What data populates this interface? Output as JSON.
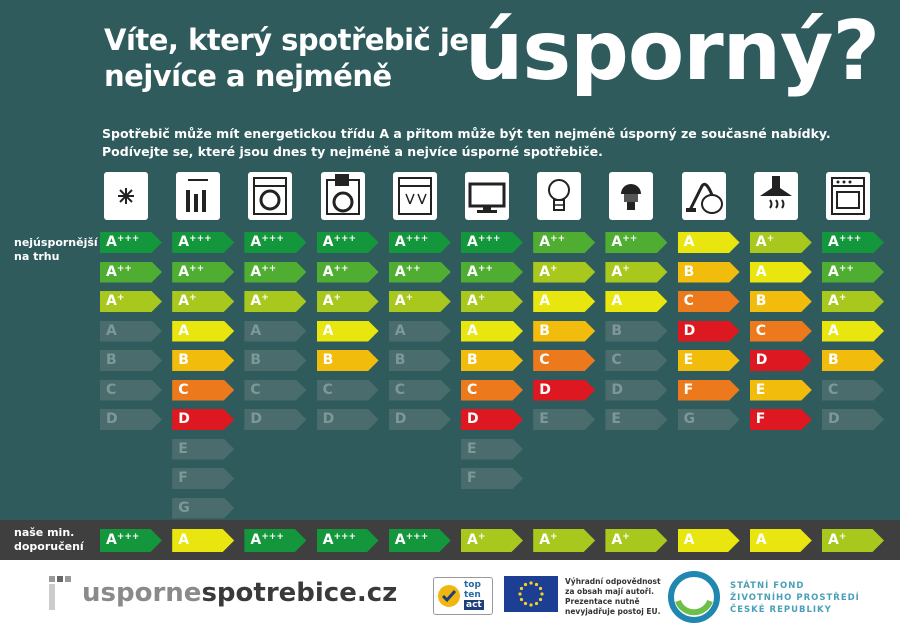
{
  "header": {
    "title_line1": "Víte, který spotřebič je",
    "title_line2": "nejvíce a nejméně",
    "title_big": "úsporný?"
  },
  "intro": {
    "line1": "Spotřebič může mít energetickou třídu A a přitom může být ten nejméně úsporný ze současné nabídky.",
    "line2": "Podívejte se, které jsou dnes ty nejméně a nejvíce úsporné spotřebiče."
  },
  "row_label": {
    "line1": "nejúspornější",
    "line2": "na trhu"
  },
  "recommendation_label": {
    "line1": "naše min.",
    "line2": "doporučení"
  },
  "colors": {
    "background": "#2f5b5c",
    "ghost": "#4b6c6d",
    "class": {
      "A+++": "#13963c",
      "A++": "#4fae32",
      "A+": "#a8c81e",
      "A": "#e9e50e",
      "B": "#f2bc0c",
      "C": "#ec7a1c",
      "D": "#dd1820",
      "E": "#4b6c6d",
      "F": "#4b6c6d",
      "G": "#4b6c6d"
    }
  },
  "appliances": [
    {
      "icon": "freezer-icon",
      "classes": [
        {
          "t": "A",
          "s": "+++",
          "c": "A+++",
          "g": false
        },
        {
          "t": "A",
          "s": "++",
          "c": "A++",
          "g": false
        },
        {
          "t": "A",
          "s": "+",
          "c": "A+",
          "g": false
        },
        {
          "t": "A",
          "s": "",
          "c": "A",
          "g": true
        },
        {
          "t": "B",
          "s": "",
          "c": "B",
          "g": true
        },
        {
          "t": "C",
          "s": "",
          "c": "C",
          "g": true
        },
        {
          "t": "D",
          "s": "",
          "c": "D",
          "g": true
        }
      ],
      "rec": {
        "t": "A",
        "s": "+++",
        "c": "A+++"
      }
    },
    {
      "icon": "wine-cooler-icon",
      "classes": [
        {
          "t": "A",
          "s": "+++",
          "c": "A+++",
          "g": false
        },
        {
          "t": "A",
          "s": "++",
          "c": "A++",
          "g": false
        },
        {
          "t": "A",
          "s": "+",
          "c": "A+",
          "g": false
        },
        {
          "t": "A",
          "s": "",
          "c": "A",
          "g": false
        },
        {
          "t": "B",
          "s": "",
          "c": "B",
          "g": false
        },
        {
          "t": "C",
          "s": "",
          "c": "C",
          "g": false
        },
        {
          "t": "D",
          "s": "",
          "c": "D",
          "g": false
        },
        {
          "t": "E",
          "s": "",
          "c": "E",
          "g": true
        },
        {
          "t": "F",
          "s": "",
          "c": "F",
          "g": true
        },
        {
          "t": "G",
          "s": "",
          "c": "G",
          "g": true
        }
      ],
      "rec": {
        "t": "A",
        "s": "",
        "c": "A"
      }
    },
    {
      "icon": "washing-machine-icon",
      "classes": [
        {
          "t": "A",
          "s": "+++",
          "c": "A+++",
          "g": false
        },
        {
          "t": "A",
          "s": "++",
          "c": "A++",
          "g": false
        },
        {
          "t": "A",
          "s": "+",
          "c": "A+",
          "g": false
        },
        {
          "t": "A",
          "s": "",
          "c": "A",
          "g": true
        },
        {
          "t": "B",
          "s": "",
          "c": "B",
          "g": true
        },
        {
          "t": "C",
          "s": "",
          "c": "C",
          "g": true
        },
        {
          "t": "D",
          "s": "",
          "c": "D",
          "g": true
        }
      ],
      "rec": {
        "t": "A",
        "s": "+++",
        "c": "A+++"
      }
    },
    {
      "icon": "washer-dryer-icon",
      "classes": [
        {
          "t": "A",
          "s": "+++",
          "c": "A+++",
          "g": false
        },
        {
          "t": "A",
          "s": "++",
          "c": "A++",
          "g": false
        },
        {
          "t": "A",
          "s": "+",
          "c": "A+",
          "g": false
        },
        {
          "t": "A",
          "s": "",
          "c": "A",
          "g": false
        },
        {
          "t": "B",
          "s": "",
          "c": "B",
          "g": false
        },
        {
          "t": "C",
          "s": "",
          "c": "C",
          "g": true
        },
        {
          "t": "D",
          "s": "",
          "c": "D",
          "g": true
        }
      ],
      "rec": {
        "t": "A",
        "s": "+++",
        "c": "A+++"
      }
    },
    {
      "icon": "dishwasher-icon",
      "classes": [
        {
          "t": "A",
          "s": "+++",
          "c": "A+++",
          "g": false
        },
        {
          "t": "A",
          "s": "++",
          "c": "A++",
          "g": false
        },
        {
          "t": "A",
          "s": "+",
          "c": "A+",
          "g": false
        },
        {
          "t": "A",
          "s": "",
          "c": "A",
          "g": true
        },
        {
          "t": "B",
          "s": "",
          "c": "B",
          "g": true
        },
        {
          "t": "C",
          "s": "",
          "c": "C",
          "g": true
        },
        {
          "t": "D",
          "s": "",
          "c": "D",
          "g": true
        }
      ],
      "rec": {
        "t": "A",
        "s": "+++",
        "c": "A+++"
      }
    },
    {
      "icon": "television-icon",
      "classes": [
        {
          "t": "A",
          "s": "+++",
          "c": "A+++",
          "g": false
        },
        {
          "t": "A",
          "s": "++",
          "c": "A++",
          "g": false
        },
        {
          "t": "A",
          "s": "+",
          "c": "A+",
          "g": false
        },
        {
          "t": "A",
          "s": "",
          "c": "A",
          "g": false
        },
        {
          "t": "B",
          "s": "",
          "c": "B",
          "g": false
        },
        {
          "t": "C",
          "s": "",
          "c": "C",
          "g": false
        },
        {
          "t": "D",
          "s": "",
          "c": "D",
          "g": false
        },
        {
          "t": "E",
          "s": "",
          "c": "E",
          "g": true
        },
        {
          "t": "F",
          "s": "",
          "c": "F",
          "g": true
        }
      ],
      "rec": {
        "t": "A",
        "s": "+",
        "c": "A+"
      }
    },
    {
      "icon": "light-bulb-icon",
      "classes": [
        {
          "t": "A",
          "s": "++",
          "c": "A++",
          "g": false
        },
        {
          "t": "A",
          "s": "+",
          "c": "A+",
          "g": false
        },
        {
          "t": "A",
          "s": "",
          "c": "A",
          "g": false
        },
        {
          "t": "B",
          "s": "",
          "c": "B",
          "g": false
        },
        {
          "t": "C",
          "s": "",
          "c": "C",
          "g": false
        },
        {
          "t": "D",
          "s": "",
          "c": "D",
          "g": false
        },
        {
          "t": "E",
          "s": "",
          "c": "E",
          "g": true
        }
      ],
      "rec": {
        "t": "A",
        "s": "+",
        "c": "A+"
      }
    },
    {
      "icon": "led-bulb-icon",
      "classes": [
        {
          "t": "A",
          "s": "++",
          "c": "A++",
          "g": false
        },
        {
          "t": "A",
          "s": "+",
          "c": "A+",
          "g": false
        },
        {
          "t": "A",
          "s": "",
          "c": "A",
          "g": false
        },
        {
          "t": "B",
          "s": "",
          "c": "B",
          "g": true
        },
        {
          "t": "C",
          "s": "",
          "c": "C",
          "g": true
        },
        {
          "t": "D",
          "s": "",
          "c": "D",
          "g": true
        },
        {
          "t": "E",
          "s": "",
          "c": "E",
          "g": true
        }
      ],
      "rec": {
        "t": "A",
        "s": "+",
        "c": "A+"
      }
    },
    {
      "icon": "vacuum-cleaner-icon",
      "classes": [
        {
          "t": "A",
          "s": "",
          "c": "A",
          "g": false
        },
        {
          "t": "B",
          "s": "",
          "c": "B",
          "g": false
        },
        {
          "t": "C",
          "s": "",
          "c": "C",
          "g": false
        },
        {
          "t": "D",
          "s": "",
          "c": "D",
          "g": false
        },
        {
          "t": "E",
          "s": "",
          "c": "E2",
          "g": false
        },
        {
          "t": "F",
          "s": "",
          "c": "F2",
          "g": false
        },
        {
          "t": "G",
          "s": "",
          "c": "G",
          "g": true
        }
      ],
      "rec": {
        "t": "A",
        "s": "",
        "c": "A"
      }
    },
    {
      "icon": "range-hood-icon",
      "classes": [
        {
          "t": "A",
          "s": "+",
          "c": "A+",
          "g": false
        },
        {
          "t": "A",
          "s": "",
          "c": "A",
          "g": false
        },
        {
          "t": "B",
          "s": "",
          "c": "B",
          "g": false
        },
        {
          "t": "C",
          "s": "",
          "c": "C",
          "g": false
        },
        {
          "t": "D",
          "s": "",
          "c": "D",
          "g": false
        },
        {
          "t": "E",
          "s": "",
          "c": "E2",
          "g": false
        },
        {
          "t": "F",
          "s": "",
          "c": "F3",
          "g": false
        }
      ],
      "rec": {
        "t": "A",
        "s": "",
        "c": "A"
      }
    },
    {
      "icon": "oven-icon",
      "classes": [
        {
          "t": "A",
          "s": "+++",
          "c": "A+++",
          "g": false
        },
        {
          "t": "A",
          "s": "++",
          "c": "A++",
          "g": false
        },
        {
          "t": "A",
          "s": "+",
          "c": "A+",
          "g": false
        },
        {
          "t": "A",
          "s": "",
          "c": "A",
          "g": false
        },
        {
          "t": "B",
          "s": "",
          "c": "B",
          "g": false
        },
        {
          "t": "C",
          "s": "",
          "c": "C",
          "g": true
        },
        {
          "t": "D",
          "s": "",
          "c": "D",
          "g": true
        }
      ],
      "rec": {
        "t": "A",
        "s": "+",
        "c": "A+"
      }
    }
  ],
  "footer": {
    "logo_part1": "usporne",
    "logo_part2": "spotrebice.cz",
    "topten": {
      "l1": "top",
      "l2": "ten",
      "l3": "act"
    },
    "eu_disclaimer": {
      "l1": "Výhradní odpovědnost",
      "l2": "za obsah mají autoři.",
      "l3": "Prezentace nutně",
      "l4": "nevyjadřuje postoj EU."
    },
    "sfzp": {
      "l1": "STÁTNÍ FOND",
      "l2": "ŽIVOTNÍHO PROSTŘEDÍ",
      "l3": "ČESKÉ REPUBLIKY"
    }
  }
}
